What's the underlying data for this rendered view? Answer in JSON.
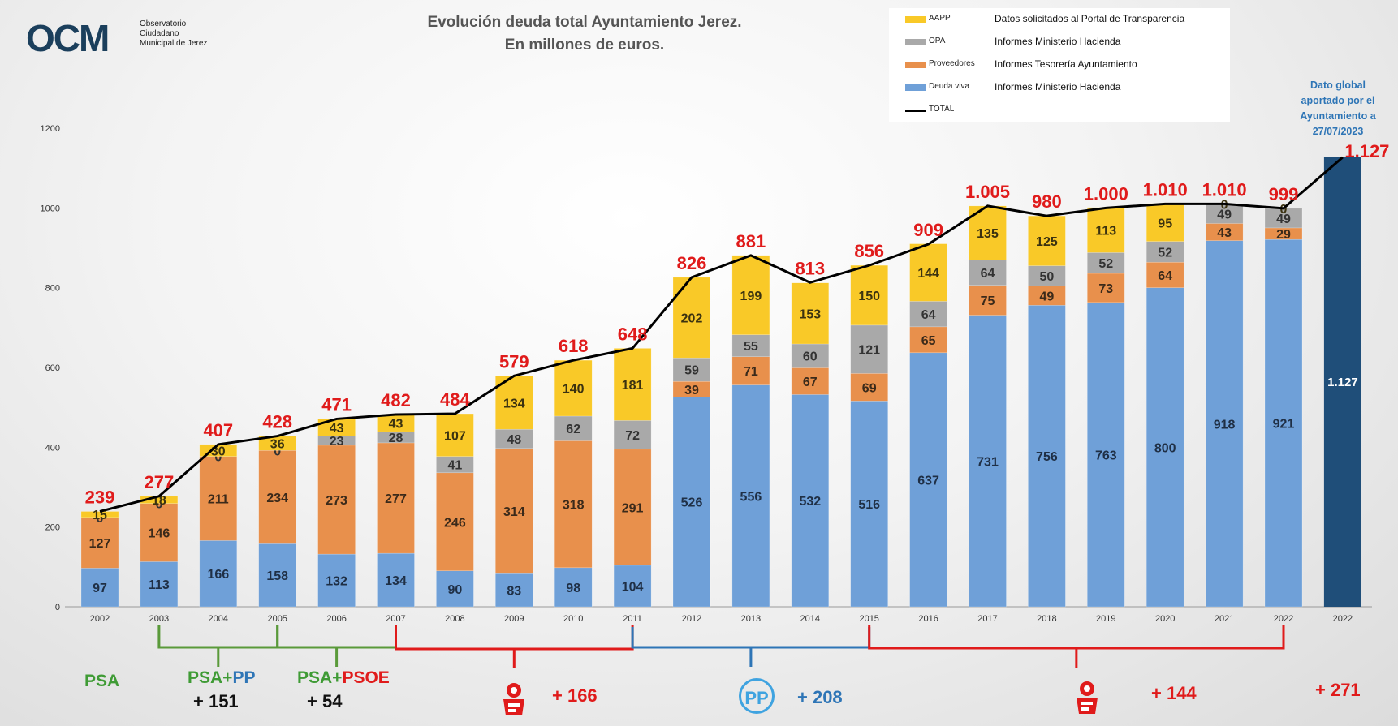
{
  "logo": {
    "mark": "OCM",
    "line1": "Observatorio",
    "line2": "Ciudadano",
    "line3": "Municipal de Jerez"
  },
  "colors": {
    "deuda_viva": "#6fa0d8",
    "proveedores": "#e8904c",
    "opa": "#a9a9a9",
    "aapp": "#f9c928",
    "total": "#000000",
    "label_red": "#e01b1b",
    "global_bar": "#1f4e79"
  },
  "chart_data": {
    "type": "bar",
    "stacked": true,
    "title": "Evolución deuda total Ayuntamiento Jerez.",
    "subtitle": "En millones de euros.",
    "ylim": [
      0,
      1200
    ],
    "yticks": [
      0,
      200,
      400,
      600,
      800,
      1000,
      1200
    ],
    "grid": false,
    "legend_position": "top-right",
    "categories": [
      "2002",
      "2003",
      "2004",
      "2005",
      "2006",
      "2007",
      "2008",
      "2009",
      "2010",
      "2011",
      "2012",
      "2013",
      "2014",
      "2015",
      "2016",
      "2017",
      "2018",
      "2019",
      "2020",
      "2021",
      "2022",
      "2022"
    ],
    "series": [
      {
        "name": "Deuda viva",
        "source": "Informes Ministerio Hacienda",
        "color": "#6fa0d8",
        "values": [
          97,
          113,
          166,
          158,
          132,
          134,
          90,
          83,
          98,
          104,
          526,
          556,
          532,
          516,
          637,
          731,
          756,
          763,
          800,
          918,
          921,
          null
        ]
      },
      {
        "name": "Proveedores",
        "source": "Informes Tesorería Ayuntamiento",
        "color": "#e8904c",
        "values": [
          127,
          146,
          211,
          234,
          273,
          277,
          246,
          314,
          318,
          291,
          39,
          71,
          67,
          69,
          65,
          75,
          49,
          73,
          64,
          43,
          29,
          null
        ]
      },
      {
        "name": "OPA",
        "source": "Informes Ministerio Hacienda",
        "color": "#a9a9a9",
        "values": [
          0,
          0,
          0,
          0,
          23,
          28,
          41,
          48,
          62,
          72,
          59,
          55,
          60,
          121,
          64,
          64,
          50,
          52,
          52,
          49,
          49,
          null
        ]
      },
      {
        "name": "AAPP",
        "source": "Datos solicitados al Portal de Transparencia",
        "color": "#f9c928",
        "values": [
          15,
          18,
          30,
          36,
          43,
          43,
          107,
          134,
          140,
          181,
          202,
          199,
          153,
          150,
          144,
          135,
          125,
          113,
          95,
          0,
          0,
          null
        ]
      }
    ],
    "total": {
      "name": "TOTAL",
      "values": [
        239,
        277,
        407,
        428,
        471,
        482,
        484,
        579,
        618,
        648,
        826,
        881,
        813,
        856,
        909,
        1005,
        980,
        1000,
        1010,
        1010,
        999,
        1127
      ],
      "labels": [
        "239",
        "277",
        "407",
        "428",
        "471",
        "482",
        "484",
        "579",
        "618",
        "648",
        "826",
        "881",
        "813",
        "856",
        "909",
        "1.005",
        "980",
        "1.000",
        "1.010",
        "1.010",
        "999",
        "1.127"
      ]
    },
    "global_bar": {
      "index": 21,
      "value": 1127,
      "label": "1.127",
      "note": [
        "Dato global",
        "aportado por el",
        "Ayuntamiento a",
        "27/07/2023"
      ]
    }
  },
  "periods": [
    {
      "label": "PSA",
      "color": "#3f9b35"
    },
    {
      "label_a": "PSA+",
      "label_b": "PP",
      "delta": "+ 151"
    },
    {
      "label_a": "PSA+",
      "label_b": "PSOE",
      "delta": "+ 54"
    },
    {
      "delta": "+ 166",
      "icon": "psoe-rose-icon"
    },
    {
      "delta": "+ 208",
      "icon": "pp-logo-icon",
      "icon_text": "PP"
    },
    {
      "delta": "+ 144",
      "icon": "psoe-rose-icon"
    },
    {
      "delta": "+ 271"
    }
  ]
}
